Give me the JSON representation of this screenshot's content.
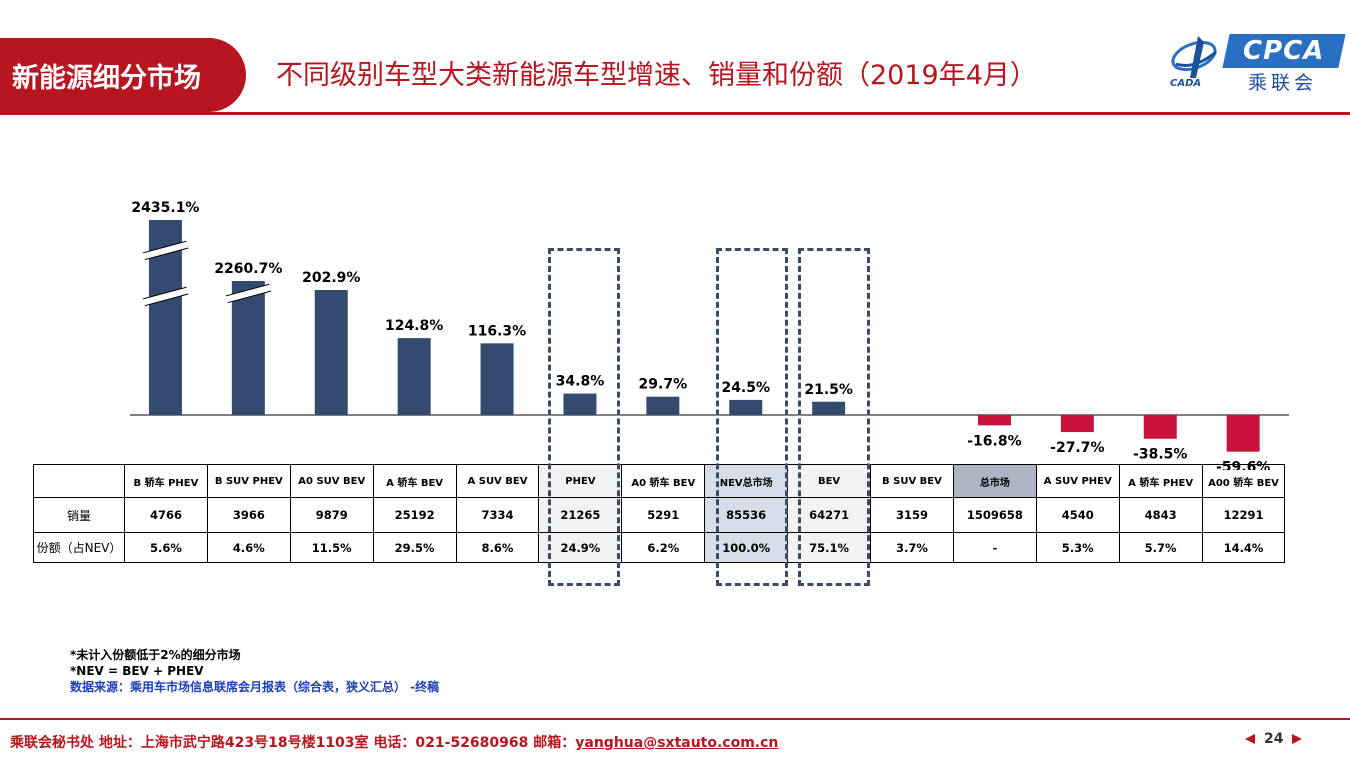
{
  "header": {
    "tag": "新能源细分市场",
    "title": "不同级别车型大类新能源车型增速、销量和份额（2019年4月）"
  },
  "logo": {
    "cada_text": "CADA",
    "cpca_text": "CPCA",
    "cn_text": "乘联会"
  },
  "colors": {
    "brand_red": "#b7151f",
    "bar_positive": "#344a6e",
    "bar_negative": "#c8143c",
    "highlight_total": "#adb5c4",
    "highlight_nev": "#d7dde8",
    "highlight_light": "#f2f2f2"
  },
  "chart_data": {
    "type": "bar",
    "title": "",
    "xlabel": "",
    "ylabel": "",
    "categories": [
      "B 轿车 PHEV",
      "B SUV PHEV",
      "A0 SUV BEV",
      "A 轿车 BEV",
      "A SUV BEV",
      "PHEV",
      "A0 轿车 BEV",
      "NEV总市场",
      "BEV",
      "B SUV BEV",
      "总市场",
      "A SUV PHEV",
      "A 轿车 PHEV",
      "A00 轿车 BEV"
    ],
    "values": [
      2435.1,
      2260.7,
      202.9,
      124.8,
      116.3,
      34.8,
      29.7,
      24.5,
      21.5,
      null,
      -16.8,
      -27.7,
      -38.5,
      -59.6
    ],
    "data_labels": [
      "2435.1%",
      "2260.7%",
      "202.9%",
      "124.8%",
      "116.3%",
      "34.8%",
      "29.7%",
      "24.5%",
      "21.5%",
      "",
      "-16.8%",
      "-27.7%",
      "-38.5%",
      "-59.6%"
    ],
    "broken_axis_bars": [
      "B 轿车 PHEV",
      "B SUV PHEV"
    ],
    "grid": false,
    "legend": "none",
    "table": {
      "row_labels": [
        "销量",
        "份额（占NEV）"
      ],
      "sales": [
        "4766",
        "3966",
        "9879",
        "25192",
        "7334",
        "21265",
        "5291",
        "85536",
        "64271",
        "3159",
        "1509658",
        "4540",
        "4843",
        "12291"
      ],
      "share": [
        "5.6%",
        "4.6%",
        "11.5%",
        "29.5%",
        "8.6%",
        "24.9%",
        "6.2%",
        "100.0%",
        "75.1%",
        "3.7%",
        "-",
        "5.3%",
        "5.7%",
        "14.4%"
      ]
    }
  },
  "notes": {
    "line1": "*未计入份额低于2%的细分市场",
    "line2": "*NEV = BEV + PHEV",
    "source": "数据来源：乘用车市场信息联席会月报表（综合表，狭义汇总） -终稿"
  },
  "footer": {
    "text_main": "乘联会秘书处   地址：上海市武宁路423号18号楼1103室  电话：021-52680968   邮箱：",
    "email": "yanghua@sxtauto.com.cn",
    "page_number": "24",
    "prev_icon": "triangle-left-icon",
    "next_icon": "triangle-right-icon"
  }
}
